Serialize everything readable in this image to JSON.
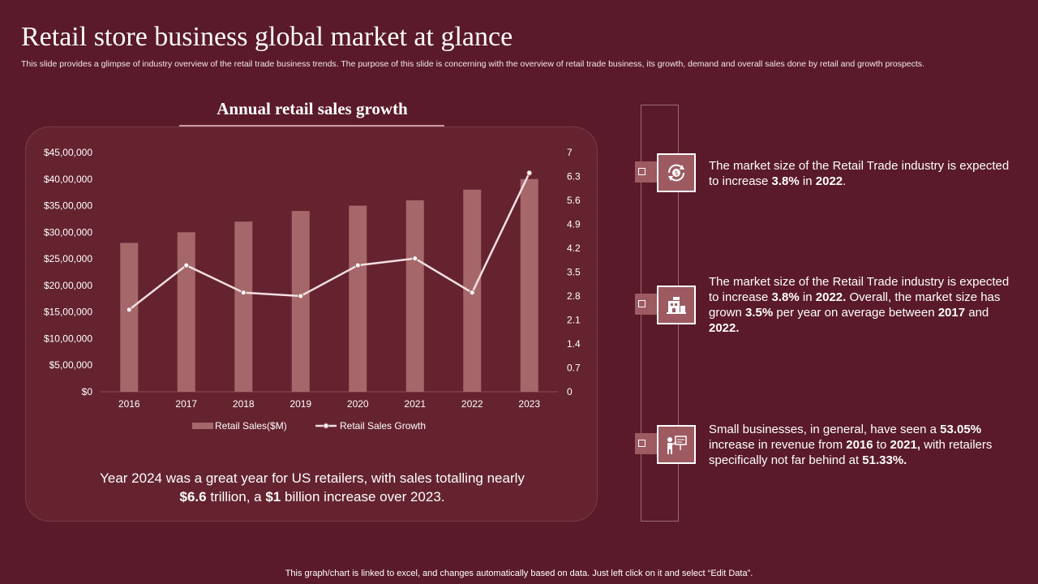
{
  "page": {
    "title": "Retail store business global market at glance",
    "subtitle": "This slide provides a glimpse of industry overview of the retail trade business trends. The purpose of this slide is concerning with the overview of retail trade business, its growth, demand and overall sales done by retail and growth prospects.",
    "footer": "This graph/chart is linked to excel,  and changes automatically based on data. Just left click on it and select “Edit Data”."
  },
  "chart_heading": "Annual retail sales growth",
  "chart_data": {
    "type": "bar",
    "categories": [
      "2016",
      "2017",
      "2018",
      "2019",
      "2020",
      "2021",
      "2022",
      "2023"
    ],
    "series": [
      {
        "name": "Retail Sales($M)",
        "type": "bar",
        "axis": "left",
        "values": [
          2800000,
          3000000,
          3200000,
          3400000,
          3500000,
          3600000,
          3800000,
          4000000
        ],
        "color": "#a5676a"
      },
      {
        "name": "Retail Sales Growth",
        "type": "line",
        "axis": "right",
        "values": [
          2.4,
          3.7,
          2.9,
          2.8,
          3.7,
          3.9,
          2.9,
          6.4
        ],
        "color": "#f2dfe1"
      }
    ],
    "y_left": {
      "min": 0,
      "max": 4500000,
      "ticks": [
        "$0",
        "$5,00,000",
        "$10,00,000",
        "$15,00,000",
        "$20,00,000",
        "$25,00,000",
        "$30,00,000",
        "$35,00,000",
        "$40,00,000",
        "$45,00,000"
      ]
    },
    "y_right": {
      "min": 0,
      "max": 7,
      "ticks": [
        "0",
        "0.7",
        "1.4",
        "2.1",
        "2.8",
        "3.5",
        "4.2",
        "4.9",
        "5.6",
        "6.3",
        "7"
      ]
    },
    "grid": false,
    "legend": "bottom"
  },
  "chart_note": {
    "l1": "Year 2024 was a great year for US retailers, with sales totalling nearly",
    "l2a": "$6.6",
    "l2b": " trillion, a ",
    "l2c": "$1",
    "l2d": " billion increase over 2023."
  },
  "points": [
    {
      "icon": "money-cycle-icon",
      "p1": "The market size of the Retail Trade industry is expected to increase ",
      "b1": "3.8%",
      "p2": " in ",
      "b2": "2022",
      "p3": "."
    },
    {
      "icon": "storefront-icon",
      "p1": "The market size of the Retail Trade industry is expected to increase ",
      "b1": "3.8%",
      "p2": " in ",
      "b2": "2022. ",
      "p3": "Overall, the market size has grown ",
      "b3": "3.5%",
      "p4": " per year on average between ",
      "b4": "2017",
      "p5": " and ",
      "b5": "2022."
    },
    {
      "icon": "presentation-icon",
      "p1": "Small businesses, in general, have seen a ",
      "b1": "53.05%",
      "p2": " increase in revenue from ",
      "b2": "2016",
      "p3": " to ",
      "b3": "2021,",
      "p4": " with retailers specifically not far behind at ",
      "b4": "51.33%."
    }
  ],
  "colors": {
    "background": "#5b1a2a",
    "panel": "#65222f",
    "bar": "#a5676a",
    "line": "#f2dfe1",
    "accent": "#9e5a61"
  }
}
